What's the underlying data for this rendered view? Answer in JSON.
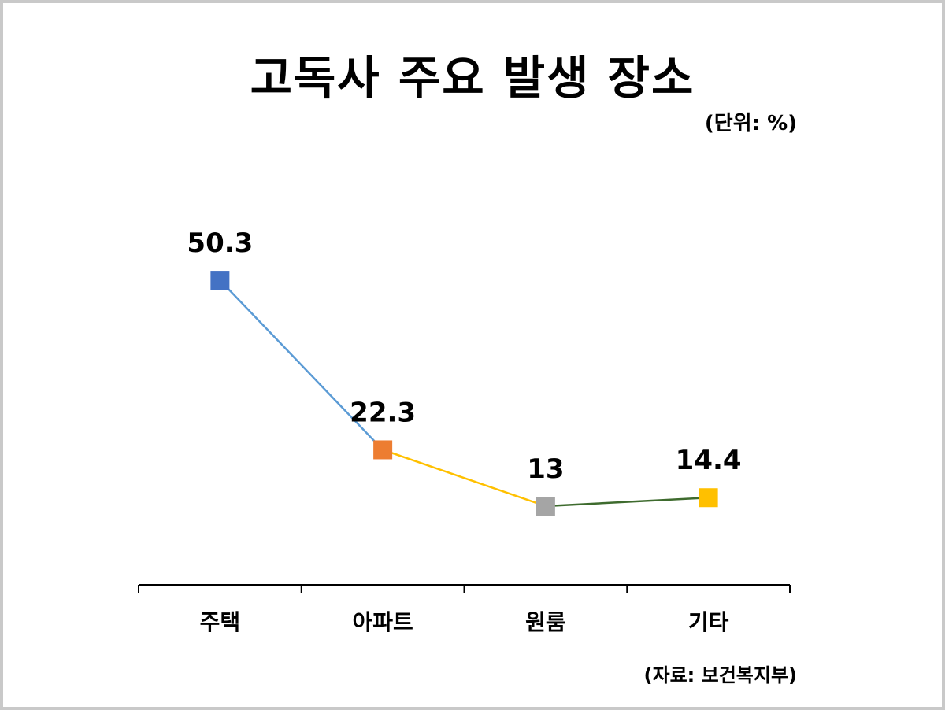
{
  "title": "고독사 주요 발생 장소",
  "unit_note": "(단위: %)",
  "source_note": "(자료: 보건복지부)",
  "chart_data": {
    "type": "line",
    "categories": [
      "주택",
      "아파트",
      "원룸",
      "기타"
    ],
    "values": [
      50.3,
      22.3,
      13,
      14.4
    ],
    "data_labels": [
      "50.3",
      "22.3",
      "13",
      "14.4"
    ],
    "marker_colors": [
      "#4472c4",
      "#ed7d31",
      "#a5a5a5",
      "#ffc000"
    ],
    "segment_colors": [
      "#5b9bd5",
      "#ffc000",
      "#3e6b2e"
    ],
    "ylim": [
      0,
      65
    ],
    "grid": false,
    "legend": "none"
  }
}
